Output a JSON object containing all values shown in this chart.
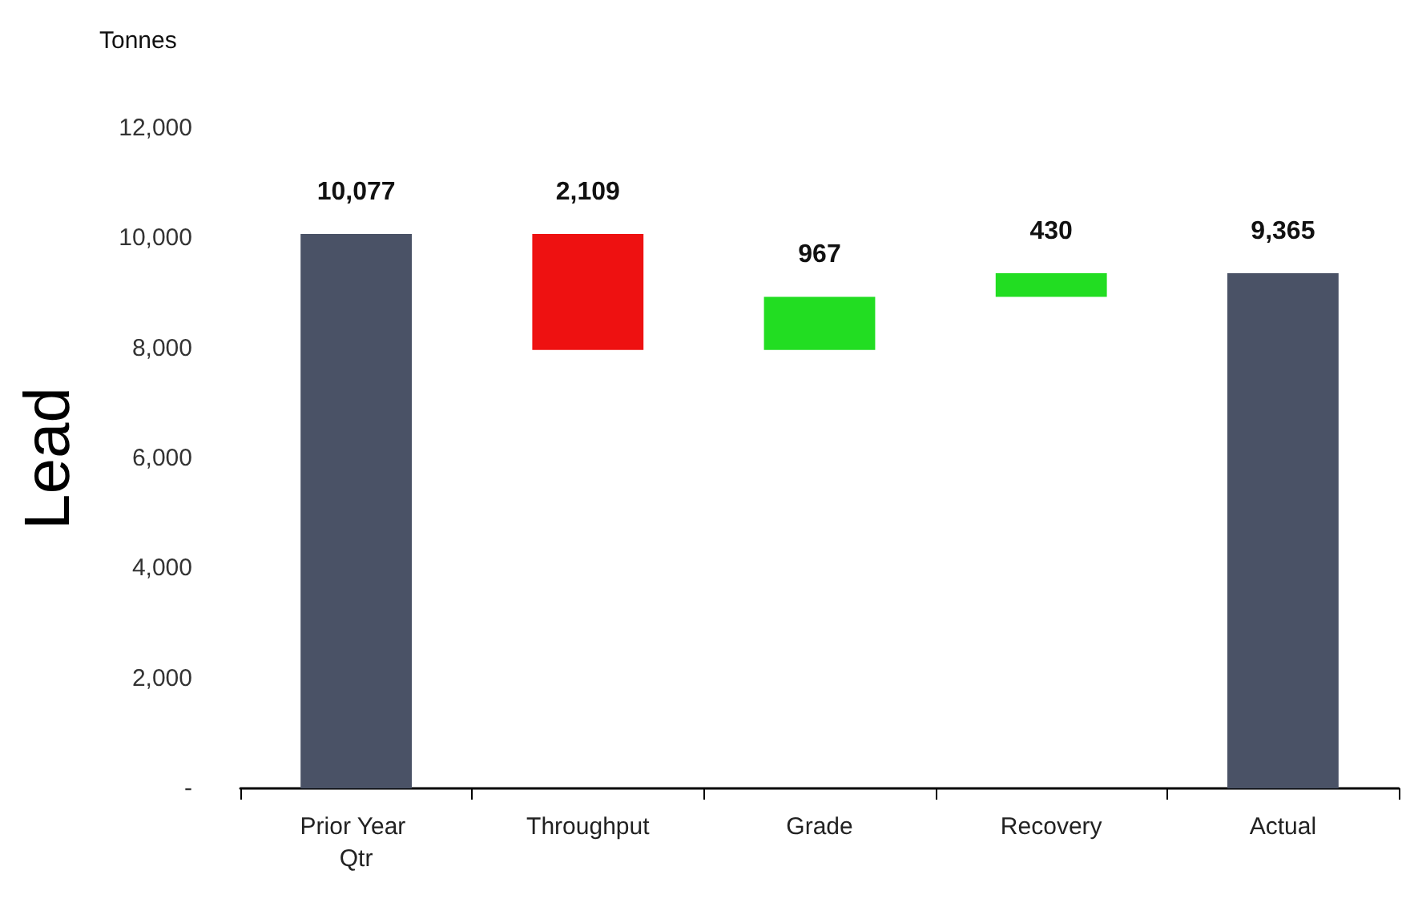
{
  "chart_data": {
    "type": "bar",
    "ylabel": "Lead",
    "annotations": [
      "Tonnes"
    ],
    "categories": [
      "Prior Year Qtr",
      "Throughput",
      "Grade",
      "Recovery",
      "Actual"
    ],
    "values": [
      10077,
      -2109,
      967,
      430,
      9365
    ],
    "base": [
      0,
      10077,
      7968,
      8935,
      0
    ],
    "colors": [
      "#4a5266",
      "#ee1111",
      "#22dd22",
      "#22dd22",
      "#4a5266"
    ],
    "value_labels": [
      "10,077",
      "2,109",
      "967",
      "430",
      "9,365"
    ],
    "ylim": [
      0,
      12000
    ],
    "yticks": [
      {
        "value": 0,
        "label": "-"
      },
      {
        "value": 2000,
        "label": "2,000"
      },
      {
        "value": 4000,
        "label": "4,000"
      },
      {
        "value": 6000,
        "label": "6,000"
      },
      {
        "value": 8000,
        "label": "8,000"
      },
      {
        "value": 10000,
        "label": "10,000"
      },
      {
        "value": 12000,
        "label": "12,000"
      }
    ],
    "grid": false
  }
}
